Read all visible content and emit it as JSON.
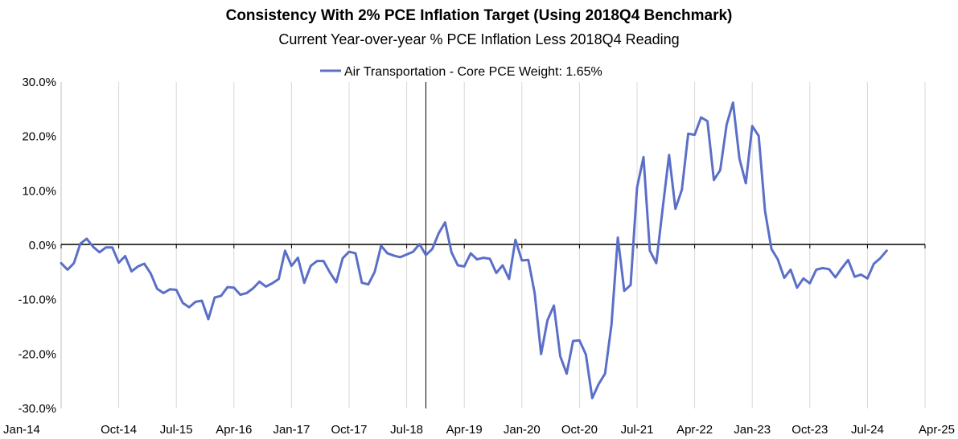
{
  "chart_data": {
    "type": "line",
    "title": "Consistency With 2% PCE Inflation Target (Using 2018Q4 Benchmark)",
    "subtitle": "Current Year-over-year % PCE Inflation Less 2018Q4 Reading",
    "xlabel": "",
    "ylabel": "",
    "x_ticks": [
      "Jan-14",
      "Oct-14",
      "Jul-15",
      "Apr-16",
      "Jan-17",
      "Oct-17",
      "Jul-18",
      "Apr-19",
      "Jan-20",
      "Oct-20",
      "Jul-21",
      "Apr-22",
      "Jan-23",
      "Oct-23",
      "Jul-24",
      "Apr-25"
    ],
    "y_ticks": [
      "30.0%",
      "20.0%",
      "10.0%",
      "0.0%",
      "-10.0%",
      "-20.0%",
      "-30.0%"
    ],
    "ylim": [
      -30,
      30
    ],
    "xlim": [
      "2014-01",
      "2025-04"
    ],
    "x_start": "2014-01",
    "x_step": "month",
    "vertical_marker": "2018-10",
    "grid": "vertical",
    "legend_position": "top-center",
    "series": [
      {
        "name": "Air Transportation - Core PCE Weight: 1.65%",
        "color": "#5B6FC8",
        "values": [
          -3.3,
          -4.5,
          -3.3,
          0.3,
          1.2,
          -0.3,
          -1.3,
          -0.4,
          -0.4,
          -3.2,
          -2.0,
          -4.8,
          -3.9,
          -3.4,
          -5.2,
          -8.0,
          -8.8,
          -8.1,
          -8.2,
          -10.6,
          -11.4,
          -10.4,
          -10.2,
          -13.6,
          -9.6,
          -9.3,
          -7.7,
          -7.8,
          -9.1,
          -8.8,
          -7.9,
          -6.7,
          -7.6,
          -7.0,
          -6.2,
          -1.0,
          -3.8,
          -2.3,
          -6.9,
          -3.8,
          -2.9,
          -2.9,
          -5.0,
          -6.8,
          -2.4,
          -1.2,
          -1.5,
          -6.9,
          -7.2,
          -4.9,
          -0.1,
          -1.5,
          -1.9,
          -2.2,
          -1.7,
          -1.2,
          0.2,
          -1.8,
          -0.7,
          2.2,
          4.2,
          -1.3,
          -3.7,
          -3.9,
          -1.5,
          -2.6,
          -2.3,
          -2.5,
          -5.1,
          -3.7,
          -6.2,
          1.0,
          -2.8,
          -2.7,
          -8.8,
          -20.0,
          -13.8,
          -11.1,
          -20.4,
          -23.6,
          -17.6,
          -17.5,
          -20.1,
          -28.1,
          -25.5,
          -23.6,
          -14.6,
          1.4,
          -8.4,
          -7.3,
          10.6,
          16.2,
          -1.0,
          -3.3,
          6.7,
          16.6,
          6.7,
          10.2,
          20.5,
          20.3,
          23.5,
          22.8,
          12.0,
          13.8,
          22.2,
          26.2,
          15.9,
          11.4,
          21.9,
          20.1,
          6.3,
          -0.7,
          -2.6,
          -6.0,
          -4.5,
          -7.8,
          -6.1,
          -7.0,
          -4.5,
          -4.2,
          -4.4,
          -5.9,
          -4.2,
          -2.7,
          -5.8,
          -5.4,
          -6.1,
          -3.4,
          -2.4,
          -1.0
        ]
      }
    ]
  }
}
